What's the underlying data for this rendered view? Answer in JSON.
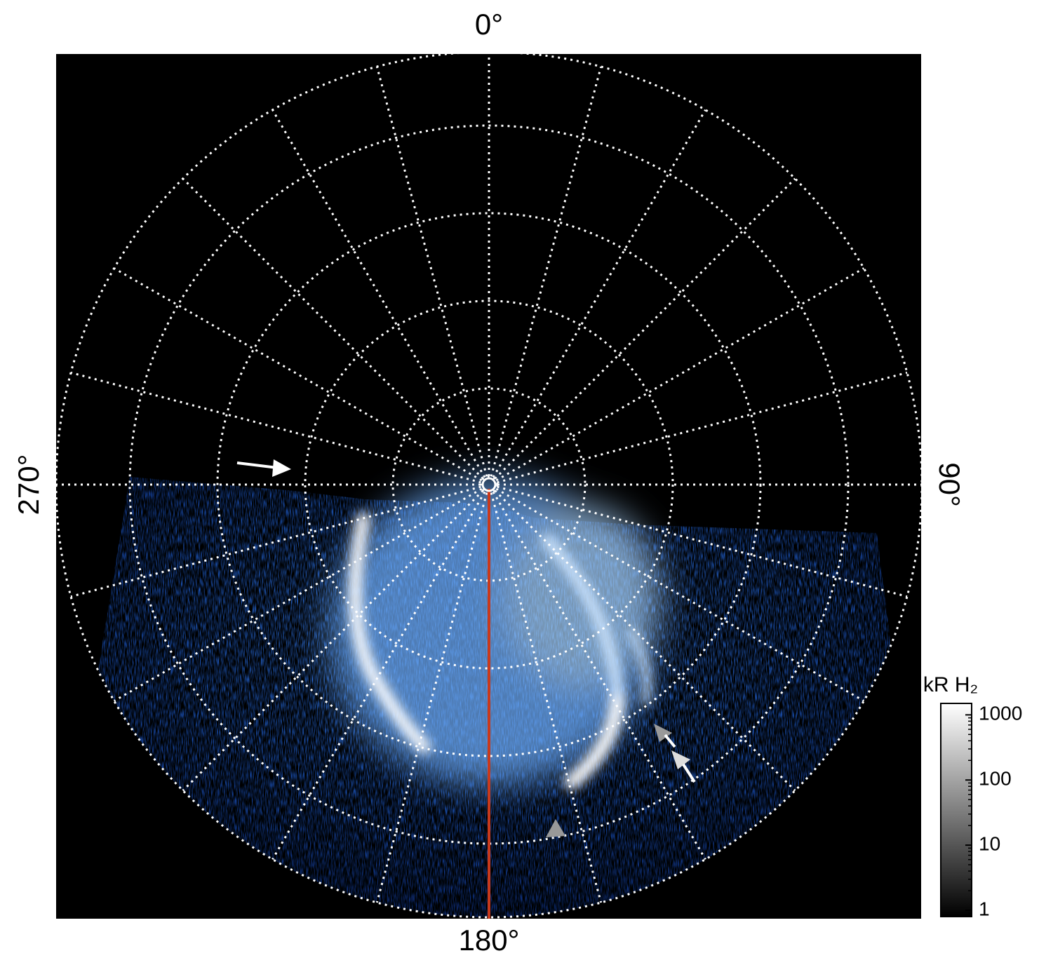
{
  "chart_data": {
    "type": "polar-image",
    "theta_ticks": [
      {
        "value": 0,
        "label": "0°"
      },
      {
        "value": 90,
        "label": "90°"
      },
      {
        "value": 180,
        "label": "180°"
      },
      {
        "value": 270,
        "label": "270°"
      }
    ],
    "colorbar": {
      "title": "kR H₂",
      "scale": "log",
      "lim": [
        0.8,
        1500
      ],
      "ticks": [
        1,
        10,
        100,
        1000
      ]
    }
  }
}
